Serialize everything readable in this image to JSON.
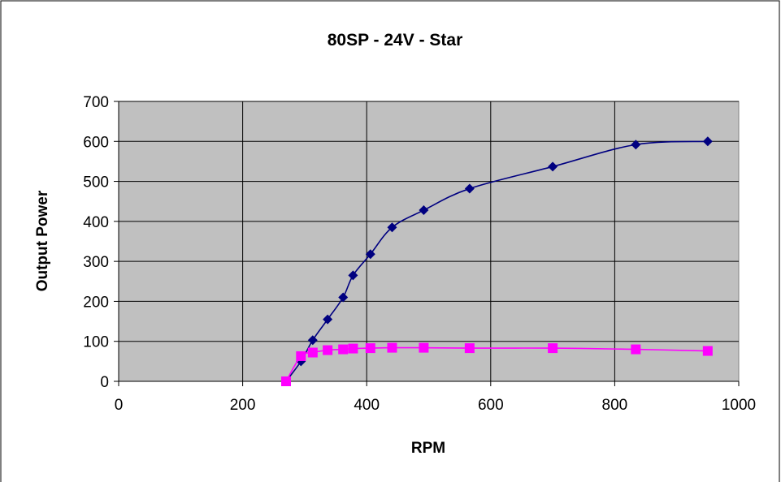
{
  "colors": {
    "plot_background": "#c0c0c0",
    "grid": "#000000",
    "series_a": "#000080",
    "series_b": "#ff00ff"
  },
  "chart_data": {
    "type": "scatter",
    "title": "80SP - 24V - Star",
    "xlabel": "RPM",
    "ylabel": "Output Power",
    "xlim": [
      0,
      1000
    ],
    "ylim": [
      0,
      700
    ],
    "x_ticks": [
      0,
      200,
      400,
      600,
      800,
      1000
    ],
    "y_ticks": [
      0,
      100,
      200,
      300,
      400,
      500,
      600,
      700
    ],
    "grid": true,
    "smooth_lines": true,
    "series": [
      {
        "marker": "diamond",
        "color": "#000080",
        "points": [
          [
            270,
            0
          ],
          [
            294,
            50
          ],
          [
            313,
            103
          ],
          [
            337,
            155
          ],
          [
            362,
            210
          ],
          [
            378,
            265
          ],
          [
            406,
            318
          ],
          [
            441,
            385
          ],
          [
            492,
            428
          ],
          [
            566,
            482
          ],
          [
            700,
            537
          ],
          [
            834,
            592
          ],
          [
            950,
            600
          ]
        ]
      },
      {
        "marker": "square",
        "color": "#ff00ff",
        "points": [
          [
            270,
            0
          ],
          [
            294,
            63
          ],
          [
            313,
            72
          ],
          [
            337,
            78
          ],
          [
            362,
            80
          ],
          [
            378,
            82
          ],
          [
            406,
            83
          ],
          [
            441,
            84
          ],
          [
            492,
            84
          ],
          [
            566,
            83
          ],
          [
            700,
            83
          ],
          [
            834,
            80
          ],
          [
            950,
            76
          ]
        ]
      }
    ]
  }
}
